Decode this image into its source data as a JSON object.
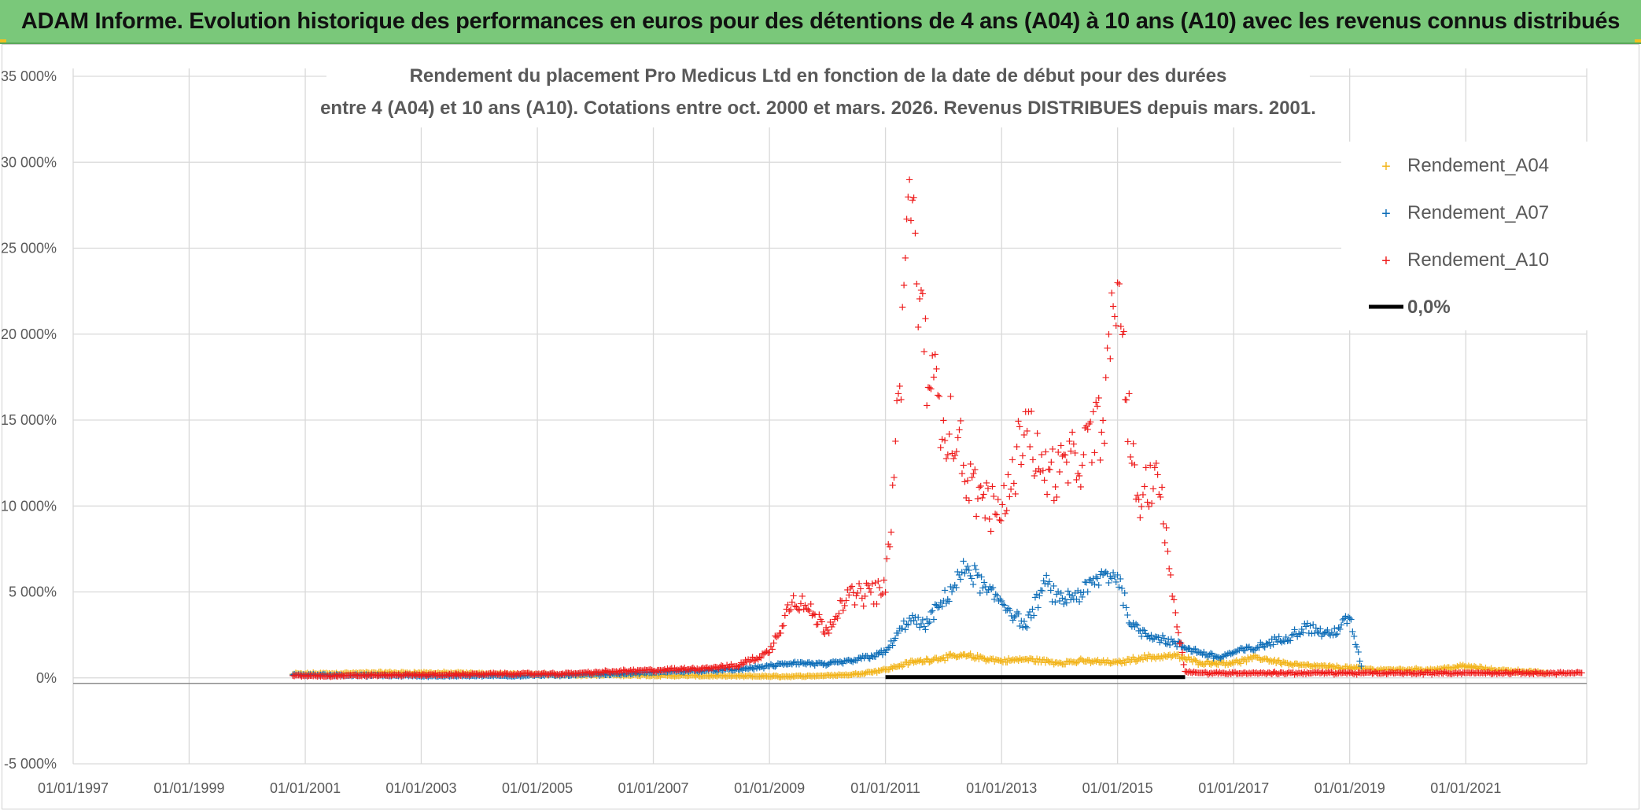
{
  "banner": {
    "title": "ADAM Informe. Evolution historique des performances en euros pour des détentions de 4 ans (A04) à 10 ans (A10) avec les revenus connus distribués"
  },
  "colors": {
    "banner_bg": "#7ac87a",
    "A04": "#f2b51d",
    "A07": "#0f6eb8",
    "A10": "#ee1c1c",
    "zero_line": "#000000",
    "grid": "#d9d9d9"
  },
  "chart_data": {
    "type": "scatter",
    "title_line1": "Rendement du placement Pro Medicus Ltd en fonction de la date de début pour des durées",
    "title_line2": "entre 4 (A04) et 10 ans (A10). Cotations entre oct. 2000 et mars. 2026. Revenus DISTRIBUES depuis mars. 2001.",
    "x_ticks": [
      "01/01/1997",
      "01/01/1999",
      "01/01/2001",
      "01/01/2003",
      "01/01/2005",
      "01/01/2007",
      "01/01/2009",
      "01/01/2011",
      "01/01/2013",
      "01/01/2015",
      "01/01/2017",
      "01/01/2019",
      "01/01/2021"
    ],
    "xlim": [
      "1997-01-01",
      "2023-02-01"
    ],
    "y_ticks": [
      "-5 000%",
      "0%",
      "5 000%",
      "10 000%",
      "15 000%",
      "20 000%",
      "25 000%",
      "30 000%",
      "35 000%"
    ],
    "ylim": [
      -5000,
      35000
    ],
    "grid": true,
    "legend_position": "top-right",
    "legend": {
      "A04": "Rendement_A04",
      "A07": "Rendement_A07",
      "A10": "Rendement_A10",
      "zero": "0,0%"
    },
    "series": [
      {
        "name": "Rendement_A04",
        "key": "A04",
        "x": [
          "2000-10-15",
          "2001-06-01",
          "2002-06-01",
          "2003-06-01",
          "2004-06-01",
          "2005-06-01",
          "2006-06-01",
          "2007-06-01",
          "2008-06-01",
          "2009-06-01",
          "2010-06-01",
          "2011-01-01",
          "2011-06-01",
          "2012-01-01",
          "2012-06-01",
          "2013-01-01",
          "2013-06-01",
          "2014-01-01",
          "2014-06-01",
          "2015-01-01",
          "2015-06-01",
          "2016-01-01",
          "2016-06-01",
          "2017-01-01",
          "2017-06-01",
          "2018-01-01",
          "2018-06-01",
          "2019-01-01",
          "2019-06-01",
          "2020-01-01",
          "2020-06-01",
          "2021-01-01",
          "2021-06-01",
          "2022-01-01",
          "2022-06-01"
        ],
        "y": [
          250,
          280,
          320,
          300,
          250,
          200,
          180,
          150,
          120,
          100,
          200,
          500,
          900,
          1200,
          1300,
          1000,
          1100,
          900,
          1000,
          900,
          1200,
          1300,
          900,
          900,
          1200,
          800,
          700,
          600,
          500,
          500,
          500,
          700,
          500,
          400,
          300
        ]
      },
      {
        "name": "Rendement_A07",
        "key": "A07",
        "x": [
          "2000-10-15",
          "2001-06-01",
          "2002-06-01",
          "2003-06-01",
          "2004-06-01",
          "2005-06-01",
          "2006-06-01",
          "2007-06-01",
          "2008-06-01",
          "2009-01-01",
          "2009-06-01",
          "2010-01-01",
          "2010-06-01",
          "2011-01-01",
          "2011-06-01",
          "2011-09-01",
          "2012-01-01",
          "2012-06-01",
          "2012-10-01",
          "2013-01-01",
          "2013-06-01",
          "2013-10-01",
          "2014-01-01",
          "2014-06-01",
          "2014-10-01",
          "2015-01-01",
          "2015-04-01",
          "2015-08-01",
          "2016-01-01",
          "2016-06-01",
          "2016-10-01",
          "2017-01-01",
          "2017-06-01",
          "2018-01-01",
          "2018-04-01",
          "2018-09-01",
          "2019-01-01",
          "2019-03-15"
        ],
        "y": [
          200,
          180,
          150,
          130,
          150,
          180,
          250,
          400,
          500,
          700,
          900,
          800,
          1000,
          1500,
          3500,
          3000,
          4500,
          6500,
          5000,
          4500,
          3000,
          5500,
          4500,
          5000,
          6000,
          6000,
          3000,
          2500,
          2000,
          1500,
          1200,
          1500,
          1800,
          2500,
          3000,
          2500,
          3500,
          700
        ]
      },
      {
        "name": "Rendement_A10",
        "key": "A10",
        "x": [
          "2000-10-15",
          "2001-06-01",
          "2002-06-01",
          "2003-06-01",
          "2004-06-01",
          "2005-06-01",
          "2006-06-01",
          "2007-06-01",
          "2008-06-01",
          "2009-01-01",
          "2009-06-01",
          "2009-09-01",
          "2010-01-01",
          "2010-04-01",
          "2010-07-01",
          "2010-10-01",
          "2011-01-01",
          "2011-04-01",
          "2011-06-01",
          "2011-09-01",
          "2012-01-01",
          "2012-04-01",
          "2012-06-01",
          "2012-09-01",
          "2012-12-01",
          "2013-03-01",
          "2013-06-01",
          "2013-09-01",
          "2014-01-01",
          "2014-06-01",
          "2014-10-01",
          "2015-01-01",
          "2015-02-01",
          "2015-04-01",
          "2015-06-01",
          "2015-09-01",
          "2015-12-01",
          "2016-01-01",
          "2016-03-01",
          "2016-06-01",
          "2017-01-01",
          "2018-01-01",
          "2019-01-01",
          "2020-01-01",
          "2021-01-01",
          "2022-01-01",
          "2023-01-01"
        ],
        "y": [
          150,
          130,
          180,
          200,
          250,
          250,
          400,
          500,
          700,
          1500,
          4800,
          4000,
          2800,
          4500,
          4800,
          5000,
          5000,
          17000,
          29000,
          19000,
          15000,
          14000,
          11500,
          10500,
          9500,
          11000,
          15500,
          12000,
          12000,
          13000,
          15000,
          23000,
          20000,
          12500,
          10000,
          12500,
          6000,
          3800,
          400,
          300,
          300,
          300,
          300,
          300,
          300,
          300,
          300
        ]
      }
    ],
    "zero_series": {
      "name": "0,0%",
      "x": [
        "2011-01-01",
        "2016-03-01"
      ],
      "y": [
        0,
        0
      ]
    }
  }
}
